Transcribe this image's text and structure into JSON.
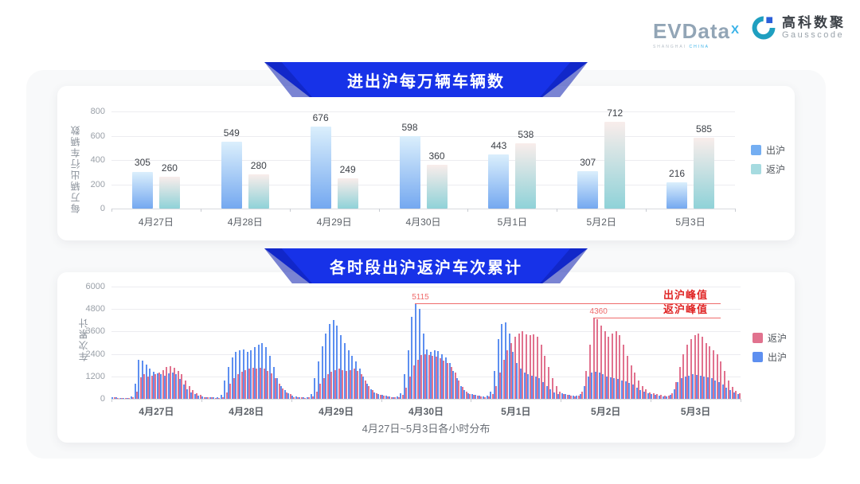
{
  "header": {
    "evdata": {
      "name": "EVData",
      "sup": "X",
      "sub_gray": "SHANGHAI",
      "sub_blue": "CHINA"
    },
    "gausscode": {
      "cn": "高科数聚",
      "en": "Gausscode"
    }
  },
  "colors": {
    "banner_blue": "#1732e8",
    "chu_bar_grad_top": "#dbeffc",
    "chu_bar_grad_bottom": "#74a8f0",
    "fan_bar_grad_top": "#f9edeb",
    "fan_bar_grad_bottom": "#8fd2d8",
    "legend1_chu": "#74aef2",
    "legend1_fan": "#a6dbe0",
    "chu_blue": "#5d8ff0",
    "fan_pink": "#e1728e",
    "annotation_text_red": "#e02626",
    "annotation_line_red": "#ef6b6b"
  },
  "chart_data": [
    {
      "type": "bar",
      "title": "进出沪每万辆车辆数",
      "ylabel": "每万辆出行车辆数",
      "ylim": [
        0,
        800
      ],
      "yticks": [
        0,
        200,
        400,
        600,
        800
      ],
      "grid": true,
      "legend_position": "right",
      "categories": [
        "4月27日",
        "4月28日",
        "4月29日",
        "4月30日",
        "5月1日",
        "5月2日",
        "5月3日"
      ],
      "series": [
        {
          "name": "出沪",
          "values": [
            305,
            549,
            676,
            598,
            443,
            307,
            216
          ]
        },
        {
          "name": "返沪",
          "values": [
            260,
            280,
            249,
            360,
            538,
            712,
            585
          ]
        }
      ]
    },
    {
      "type": "bar",
      "title": "各时段出沪返沪车次累计",
      "ylabel": "车次累计",
      "xlabel": "4月27日~5月3日各小时分布",
      "ylim": [
        0,
        6000
      ],
      "yticks": [
        0,
        1200,
        2400,
        3600,
        4800,
        6000
      ],
      "grid": true,
      "legend_position": "right",
      "legend_order": [
        "返沪",
        "出沪"
      ],
      "categories": [
        "4月27日",
        "4月28日",
        "4月29日",
        "4月30日",
        "5月1日",
        "5月2日",
        "5月3日"
      ],
      "hours_per_day": 24,
      "series": [
        {
          "name": "出沪",
          "hourly_by_day": [
            [
              100,
              80,
              60,
              50,
              50,
              120,
              800,
              2100,
              2050,
              1850,
              1600,
              1450,
              1350,
              1300,
              1250,
              1350,
              1400,
              1300,
              1050,
              750,
              500,
              350,
              250,
              150
            ],
            [
              120,
              100,
              80,
              70,
              80,
              200,
              1000,
              1700,
              2200,
              2500,
              2600,
              2650,
              2500,
              2600,
              2750,
              2900,
              3000,
              2750,
              2300,
              1700,
              1100,
              700,
              450,
              300
            ],
            [
              150,
              120,
              100,
              80,
              100,
              250,
              1100,
              2000,
              2800,
              3500,
              4000,
              4200,
              3900,
              3400,
              3000,
              2600,
              2300,
              2000,
              1600,
              1200,
              800,
              500,
              350,
              250
            ],
            [
              200,
              150,
              120,
              100,
              120,
              300,
              1300,
              2600,
              4400,
              5115,
              4800,
              3500,
              2650,
              2500,
              2600,
              2550,
              2400,
              2200,
              1900,
              1500,
              1100,
              700,
              450,
              300
            ],
            [
              250,
              200,
              150,
              120,
              150,
              400,
              1500,
              3200,
              4000,
              4100,
              3500,
              2500,
              1900,
              1600,
              1400,
              1300,
              1250,
              1200,
              1100,
              900,
              700,
              500,
              350,
              250
            ],
            [
              300,
              250,
              200,
              150,
              150,
              250,
              700,
              1200,
              1400,
              1450,
              1400,
              1300,
              1200,
              1150,
              1100,
              1050,
              1000,
              950,
              850,
              750,
              600,
              480,
              380,
              280
            ],
            [
              250,
              200,
              150,
              120,
              120,
              200,
              500,
              900,
              1100,
              1200,
              1250,
              1300,
              1280,
              1250,
              1200,
              1150,
              1100,
              1000,
              900,
              750,
              600,
              450,
              350,
              250
            ]
          ]
        },
        {
          "name": "返沪",
          "hourly_by_day": [
            [
              80,
              60,
              50,
              40,
              40,
              80,
              400,
              1150,
              1300,
              1200,
              1250,
              1300,
              1400,
              1550,
              1700,
              1750,
              1650,
              1500,
              1300,
              1000,
              700,
              450,
              300,
              200
            ],
            [
              100,
              80,
              70,
              60,
              60,
              100,
              350,
              800,
              1100,
              1300,
              1450,
              1550,
              1600,
              1650,
              1600,
              1650,
              1600,
              1500,
              1350,
              1100,
              800,
              550,
              350,
              250
            ],
            [
              100,
              80,
              70,
              60,
              70,
              120,
              400,
              800,
              1100,
              1300,
              1450,
              1550,
              1600,
              1550,
              1500,
              1550,
              1600,
              1500,
              1300,
              1000,
              700,
              450,
              300,
              200
            ],
            [
              150,
              120,
              100,
              80,
              100,
              200,
              600,
              1200,
              1800,
              2100,
              2350,
              2400,
              2350,
              2300,
              2250,
              2150,
              2050,
              1900,
              1700,
              1400,
              1000,
              650,
              400,
              250
            ],
            [
              200,
              150,
              120,
              100,
              120,
              250,
              700,
              1400,
              2100,
              2600,
              3000,
              3300,
              3500,
              3600,
              3450,
              3400,
              3450,
              3300,
              2900,
              2300,
              1700,
              1100,
              700,
              400
            ],
            [
              250,
              200,
              150,
              120,
              150,
              400,
              1500,
              2900,
              4360,
              4250,
              3900,
              3600,
              3300,
              3500,
              3600,
              3400,
              2900,
              2300,
              1800,
              1400,
              1000,
              700,
              500,
              350
            ],
            [
              300,
              250,
              200,
              150,
              150,
              300,
              900,
              1700,
              2400,
              2900,
              3200,
              3400,
              3500,
              3300,
              3000,
              2800,
              2600,
              2400,
              2000,
              1500,
              1000,
              650,
              420,
              280
            ]
          ]
        }
      ],
      "annotations": [
        {
          "label": "出沪峰值",
          "value": 5115,
          "series": "出沪"
        },
        {
          "label": "返沪峰值",
          "value": 4360,
          "series": "返沪"
        }
      ]
    }
  ]
}
